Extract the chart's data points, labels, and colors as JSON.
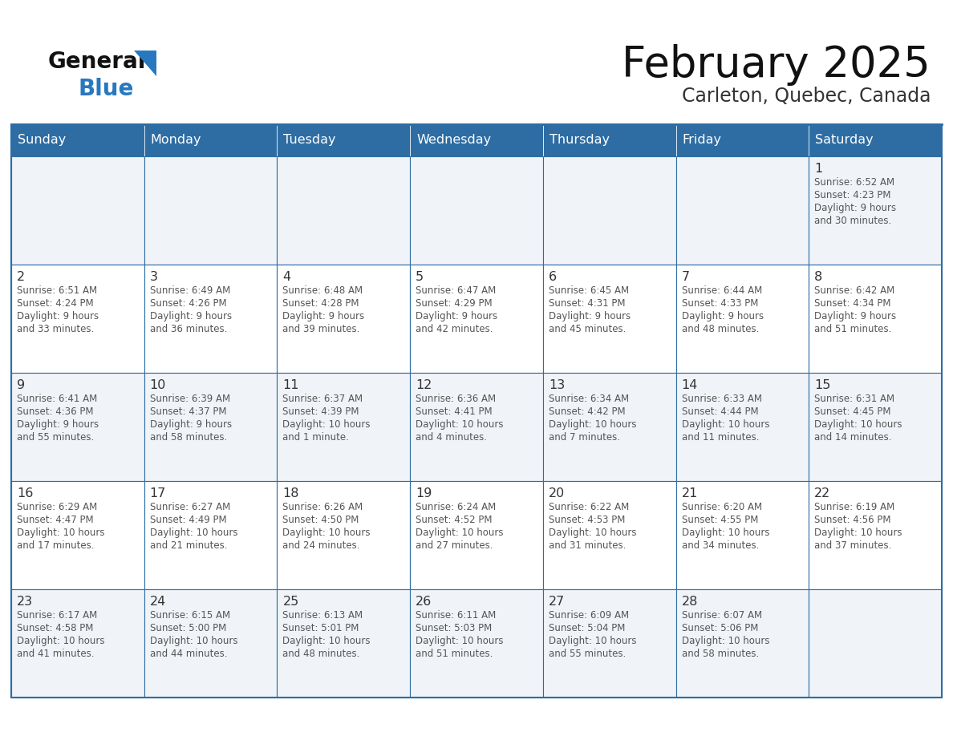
{
  "title": "February 2025",
  "subtitle": "Carleton, Quebec, Canada",
  "header_bg": "#2E6DA4",
  "header_text_color": "#FFFFFF",
  "cell_bg_light": "#F0F4F8",
  "cell_bg_white": "#FFFFFF",
  "border_color": "#2E6DA4",
  "text_color": "#555555",
  "day_number_color": "#333333",
  "days_of_week": [
    "Sunday",
    "Monday",
    "Tuesday",
    "Wednesday",
    "Thursday",
    "Friday",
    "Saturday"
  ],
  "weeks": [
    [
      {
        "day": null,
        "info": null
      },
      {
        "day": null,
        "info": null
      },
      {
        "day": null,
        "info": null
      },
      {
        "day": null,
        "info": null
      },
      {
        "day": null,
        "info": null
      },
      {
        "day": null,
        "info": null
      },
      {
        "day": 1,
        "info": "Sunrise: 6:52 AM\nSunset: 4:23 PM\nDaylight: 9 hours\nand 30 minutes."
      }
    ],
    [
      {
        "day": 2,
        "info": "Sunrise: 6:51 AM\nSunset: 4:24 PM\nDaylight: 9 hours\nand 33 minutes."
      },
      {
        "day": 3,
        "info": "Sunrise: 6:49 AM\nSunset: 4:26 PM\nDaylight: 9 hours\nand 36 minutes."
      },
      {
        "day": 4,
        "info": "Sunrise: 6:48 AM\nSunset: 4:28 PM\nDaylight: 9 hours\nand 39 minutes."
      },
      {
        "day": 5,
        "info": "Sunrise: 6:47 AM\nSunset: 4:29 PM\nDaylight: 9 hours\nand 42 minutes."
      },
      {
        "day": 6,
        "info": "Sunrise: 6:45 AM\nSunset: 4:31 PM\nDaylight: 9 hours\nand 45 minutes."
      },
      {
        "day": 7,
        "info": "Sunrise: 6:44 AM\nSunset: 4:33 PM\nDaylight: 9 hours\nand 48 minutes."
      },
      {
        "day": 8,
        "info": "Sunrise: 6:42 AM\nSunset: 4:34 PM\nDaylight: 9 hours\nand 51 minutes."
      }
    ],
    [
      {
        "day": 9,
        "info": "Sunrise: 6:41 AM\nSunset: 4:36 PM\nDaylight: 9 hours\nand 55 minutes."
      },
      {
        "day": 10,
        "info": "Sunrise: 6:39 AM\nSunset: 4:37 PM\nDaylight: 9 hours\nand 58 minutes."
      },
      {
        "day": 11,
        "info": "Sunrise: 6:37 AM\nSunset: 4:39 PM\nDaylight: 10 hours\nand 1 minute."
      },
      {
        "day": 12,
        "info": "Sunrise: 6:36 AM\nSunset: 4:41 PM\nDaylight: 10 hours\nand 4 minutes."
      },
      {
        "day": 13,
        "info": "Sunrise: 6:34 AM\nSunset: 4:42 PM\nDaylight: 10 hours\nand 7 minutes."
      },
      {
        "day": 14,
        "info": "Sunrise: 6:33 AM\nSunset: 4:44 PM\nDaylight: 10 hours\nand 11 minutes."
      },
      {
        "day": 15,
        "info": "Sunrise: 6:31 AM\nSunset: 4:45 PM\nDaylight: 10 hours\nand 14 minutes."
      }
    ],
    [
      {
        "day": 16,
        "info": "Sunrise: 6:29 AM\nSunset: 4:47 PM\nDaylight: 10 hours\nand 17 minutes."
      },
      {
        "day": 17,
        "info": "Sunrise: 6:27 AM\nSunset: 4:49 PM\nDaylight: 10 hours\nand 21 minutes."
      },
      {
        "day": 18,
        "info": "Sunrise: 6:26 AM\nSunset: 4:50 PM\nDaylight: 10 hours\nand 24 minutes."
      },
      {
        "day": 19,
        "info": "Sunrise: 6:24 AM\nSunset: 4:52 PM\nDaylight: 10 hours\nand 27 minutes."
      },
      {
        "day": 20,
        "info": "Sunrise: 6:22 AM\nSunset: 4:53 PM\nDaylight: 10 hours\nand 31 minutes."
      },
      {
        "day": 21,
        "info": "Sunrise: 6:20 AM\nSunset: 4:55 PM\nDaylight: 10 hours\nand 34 minutes."
      },
      {
        "day": 22,
        "info": "Sunrise: 6:19 AM\nSunset: 4:56 PM\nDaylight: 10 hours\nand 37 minutes."
      }
    ],
    [
      {
        "day": 23,
        "info": "Sunrise: 6:17 AM\nSunset: 4:58 PM\nDaylight: 10 hours\nand 41 minutes."
      },
      {
        "day": 24,
        "info": "Sunrise: 6:15 AM\nSunset: 5:00 PM\nDaylight: 10 hours\nand 44 minutes."
      },
      {
        "day": 25,
        "info": "Sunrise: 6:13 AM\nSunset: 5:01 PM\nDaylight: 10 hours\nand 48 minutes."
      },
      {
        "day": 26,
        "info": "Sunrise: 6:11 AM\nSunset: 5:03 PM\nDaylight: 10 hours\nand 51 minutes."
      },
      {
        "day": 27,
        "info": "Sunrise: 6:09 AM\nSunset: 5:04 PM\nDaylight: 10 hours\nand 55 minutes."
      },
      {
        "day": 28,
        "info": "Sunrise: 6:07 AM\nSunset: 5:06 PM\nDaylight: 10 hours\nand 58 minutes."
      },
      {
        "day": null,
        "info": null
      }
    ]
  ],
  "logo_text_general": "General",
  "logo_text_blue": "Blue",
  "logo_color_general": "#111111",
  "logo_color_blue": "#2878C0",
  "logo_triangle_color": "#2878C0",
  "title_color": "#111111",
  "subtitle_color": "#333333"
}
